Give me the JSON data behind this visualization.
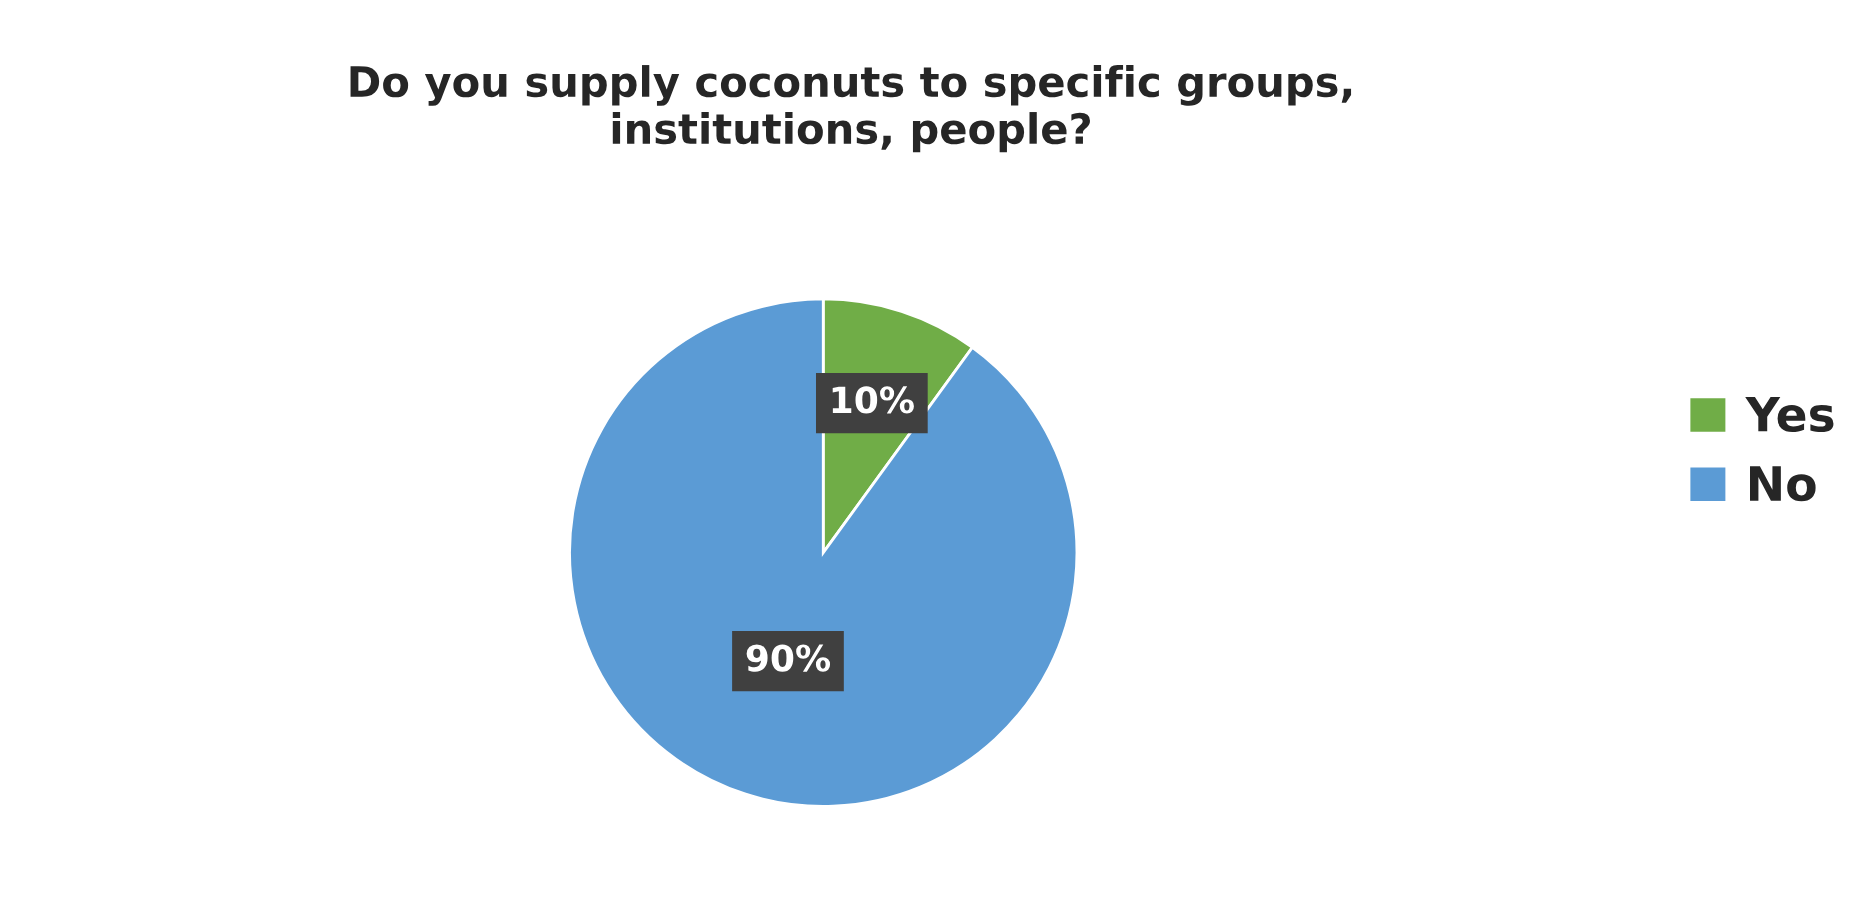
{
  "chart_data": {
    "type": "pie",
    "title": "Do you supply coconuts to specific groups,\ninstitutions, people?",
    "categories": [
      "Yes",
      "No"
    ],
    "values": [
      10,
      90
    ],
    "colors": [
      "#70ad47",
      "#5b9bd5"
    ],
    "value_labels": [
      "10%",
      "90%"
    ],
    "legend": "right"
  }
}
